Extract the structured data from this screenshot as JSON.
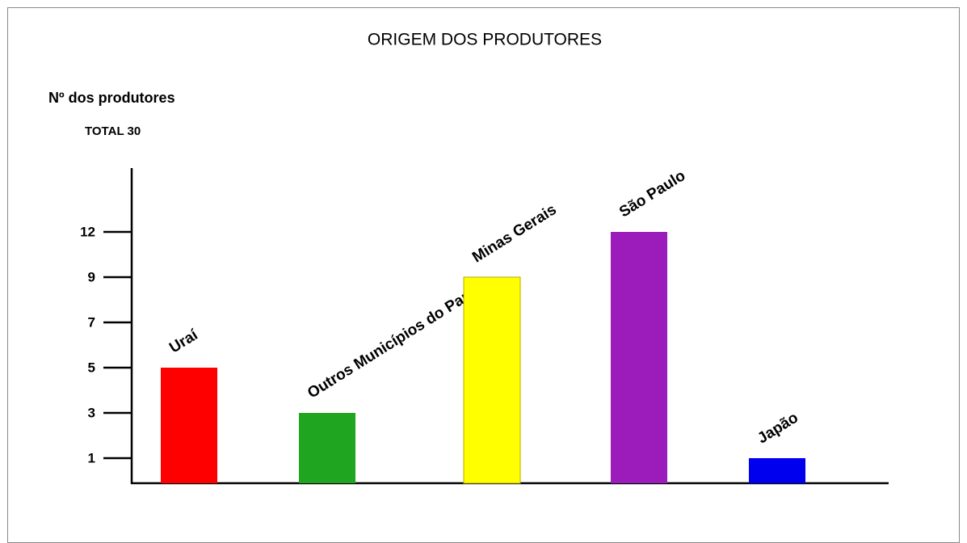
{
  "chart_data": {
    "type": "bar",
    "title": "ORIGEM DOS PRODUTORES",
    "y_label": "Nº dos produtores",
    "annotation": "TOTAL 30",
    "categories": [
      "Uraí",
      "Outros Municípios do Paraná",
      "Minas Gerais",
      "São Paulo",
      "Japão"
    ],
    "values": [
      5,
      3,
      9,
      12,
      1
    ],
    "colors": [
      "#ff0000",
      "#1fa51f",
      "#ffff00",
      "#9b1bbb",
      "#0000ee"
    ],
    "ylim": [
      0,
      16
    ],
    "yticks": [
      1,
      3,
      5,
      7,
      9,
      12
    ],
    "grid": false
  }
}
